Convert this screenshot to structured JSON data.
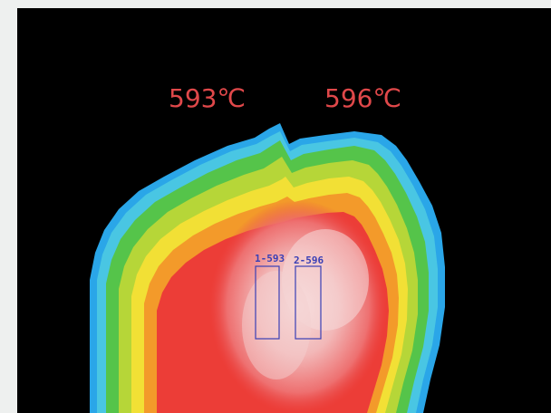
{
  "measurements": [
    {
      "label": "593℃",
      "roi_tag": "1-593",
      "value_c": 593
    },
    {
      "label": "596℃",
      "roi_tag": "2-596",
      "value_c": 596
    }
  ],
  "colors": {
    "frame_background": "#000000",
    "label_color": "#e0484a",
    "roi_color": "#3a3fb5",
    "page_background": "#eef0ef"
  }
}
